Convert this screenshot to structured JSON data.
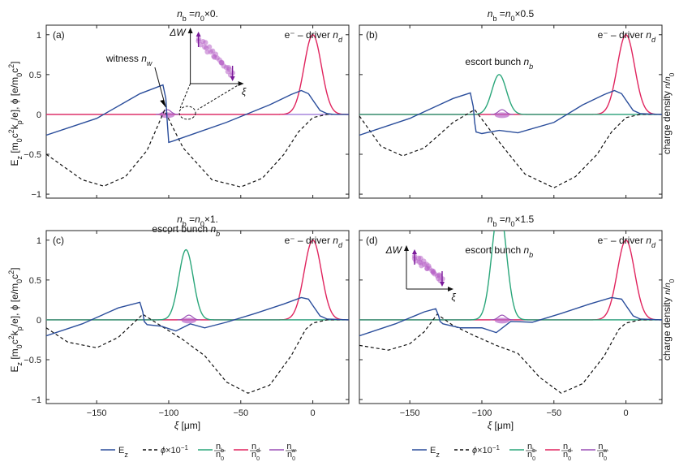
{
  "chart_data": [
    {
      "type": "line",
      "title": "n_b =n_0×0.",
      "panel_label": "(a)",
      "x_ticks": [
        -150,
        -100,
        -50,
        0
      ],
      "y_ticks": [
        -1,
        -0.5,
        0,
        0.5,
        1
      ],
      "y_tick_labels": [
        "−1",
        "−0.5",
        "0",
        "0.5",
        "1"
      ],
      "xlim": [
        -185,
        25
      ],
      "ylim": [
        -1.05,
        1.12
      ],
      "driver_label": "e⁻ – driver n_d",
      "annotation": "witness n_w",
      "escort_label": "",
      "escort_amp": 0,
      "inset": true,
      "inset_ylabel": "ΔW",
      "inset_xlabel": "ξ",
      "series": [
        {
          "name": "E_z",
          "x": [
            -185,
            -150,
            -120,
            -104,
            -102,
            -101,
            -100,
            -98,
            -60,
            -30,
            -15,
            -8,
            -3,
            0,
            5,
            10,
            15,
            25
          ],
          "y": [
            -0.26,
            -0.05,
            0.26,
            0.37,
            0.2,
            -0.1,
            -0.35,
            -0.34,
            -0.1,
            0.12,
            0.25,
            0.3,
            0.26,
            0.18,
            0.05,
            0.01,
            0.0,
            0.0
          ]
        },
        {
          "name": "φ×10⁻¹",
          "x": [
            -185,
            -160,
            -145,
            -130,
            -115,
            -103,
            -90,
            -70,
            -50,
            -35,
            -20,
            -10,
            0,
            10,
            25
          ],
          "y": [
            -0.5,
            -0.82,
            -0.9,
            -0.78,
            -0.45,
            0.05,
            -0.42,
            -0.82,
            -0.91,
            -0.8,
            -0.5,
            -0.22,
            -0.04,
            0.0,
            0.0
          ]
        }
      ]
    },
    {
      "type": "line",
      "title": "n_b =n_0×0.5",
      "panel_label": "(b)",
      "x_ticks": [
        -150,
        -100,
        -50,
        0
      ],
      "y_ticks": [
        -1,
        -0.5,
        0,
        0.5,
        1
      ],
      "y_tick_labels": [
        "",
        "",
        "",
        "",
        ""
      ],
      "xlim": [
        -185,
        25
      ],
      "ylim": [
        -1.05,
        1.12
      ],
      "driver_label": "e⁻ – driver n_d",
      "annotation": "",
      "escort_label": "escort bunch n_b",
      "escort_amp": 0.5,
      "inset": false,
      "series": [
        {
          "name": "E_z",
          "x": [
            -185,
            -150,
            -120,
            -108,
            -106,
            -105,
            -104,
            -100,
            -88,
            -75,
            -50,
            -30,
            -15,
            -8,
            -3,
            0,
            5,
            10,
            25
          ],
          "y": [
            -0.26,
            -0.05,
            0.2,
            0.27,
            0.1,
            -0.1,
            -0.22,
            -0.24,
            -0.2,
            -0.23,
            -0.1,
            0.12,
            0.25,
            0.3,
            0.26,
            0.18,
            0.05,
            0.01,
            0.0
          ]
        },
        {
          "name": "φ×10⁻¹",
          "x": [
            -185,
            -170,
            -155,
            -140,
            -120,
            -105,
            -90,
            -70,
            -50,
            -35,
            -20,
            -10,
            0,
            10,
            25
          ],
          "y": [
            -0.02,
            -0.4,
            -0.52,
            -0.42,
            -0.1,
            0.06,
            -0.3,
            -0.75,
            -0.92,
            -0.78,
            -0.5,
            -0.22,
            -0.04,
            0.0,
            0.0
          ]
        }
      ]
    },
    {
      "type": "line",
      "title": "n_b =n_0×1.",
      "panel_label": "(c)",
      "x_ticks": [
        -150,
        -100,
        -50,
        0
      ],
      "x_tick_labels": [
        "−150",
        "−100",
        "−50",
        "0"
      ],
      "y_ticks": [
        -1,
        -0.5,
        0,
        0.5,
        1
      ],
      "y_tick_labels": [
        "−1",
        "−0.5",
        "0",
        "0.5",
        "1"
      ],
      "xlim": [
        -185,
        25
      ],
      "ylim": [
        -1.05,
        1.12
      ],
      "xlabel": "ξ [μm]",
      "driver_label": "e⁻ – driver n_d",
      "annotation": "",
      "escort_label": "escort bunch n_b",
      "escort_amp": 0.88,
      "inset": false,
      "series": [
        {
          "name": "E_z",
          "x": [
            -185,
            -160,
            -135,
            -120,
            -118,
            -117,
            -115,
            -105,
            -95,
            -85,
            -75,
            -60,
            -40,
            -20,
            -8,
            -3,
            0,
            5,
            10,
            25
          ],
          "y": [
            -0.2,
            -0.05,
            0.15,
            0.22,
            0.1,
            -0.02,
            -0.06,
            -0.08,
            -0.14,
            -0.05,
            -0.1,
            -0.03,
            0.08,
            0.2,
            0.28,
            0.26,
            0.18,
            0.05,
            0.01,
            0.0
          ]
        },
        {
          "name": "φ×10⁻¹",
          "x": [
            -185,
            -170,
            -150,
            -135,
            -118,
            -105,
            -90,
            -75,
            -60,
            -45,
            -30,
            -15,
            -5,
            0,
            10,
            25
          ],
          "y": [
            -0.1,
            -0.28,
            -0.35,
            -0.22,
            0.07,
            -0.08,
            -0.25,
            -0.45,
            -0.78,
            -0.92,
            -0.82,
            -0.45,
            -0.12,
            -0.04,
            0.0,
            0.0
          ]
        }
      ]
    },
    {
      "type": "line",
      "title": "n_b =n_0×1.5",
      "panel_label": "(d)",
      "x_ticks": [
        -150,
        -100,
        -50,
        0
      ],
      "x_tick_labels": [
        "−150",
        "−100",
        "−50",
        "0"
      ],
      "y_ticks": [
        -1,
        -0.5,
        0,
        0.5,
        1
      ],
      "y_tick_labels": [
        "",
        "",
        "",
        "",
        ""
      ],
      "xlim": [
        -185,
        25
      ],
      "ylim": [
        -1.05,
        1.12
      ],
      "xlabel": "ξ [μm]",
      "driver_label": "e⁻ – driver n_d",
      "annotation": "",
      "escort_label": "escort bunch n_b",
      "escort_amp": 1.42,
      "inset": true,
      "inset_ylabel": "ΔW",
      "inset_xlabel": "ξ",
      "series": [
        {
          "name": "E_z",
          "x": [
            -185,
            -160,
            -140,
            -132,
            -130,
            -129,
            -127,
            -115,
            -100,
            -90,
            -80,
            -65,
            -45,
            -25,
            -10,
            -3,
            0,
            5,
            10,
            25
          ],
          "y": [
            -0.2,
            -0.05,
            0.1,
            0.14,
            0.05,
            -0.02,
            -0.05,
            -0.1,
            -0.1,
            -0.16,
            -0.02,
            -0.03,
            0.08,
            0.2,
            0.28,
            0.26,
            0.18,
            0.05,
            0.01,
            0.0
          ]
        },
        {
          "name": "φ×10⁻¹",
          "x": [
            -185,
            -165,
            -150,
            -140,
            -131,
            -120,
            -105,
            -90,
            -75,
            -60,
            -45,
            -30,
            -15,
            -5,
            0,
            10,
            25
          ],
          "y": [
            -0.32,
            -0.38,
            -0.3,
            -0.15,
            0.07,
            -0.07,
            -0.2,
            -0.32,
            -0.42,
            -0.72,
            -0.92,
            -0.8,
            -0.45,
            -0.12,
            -0.04,
            0.0,
            0.0
          ]
        }
      ]
    }
  ],
  "labels": {
    "ylabel": "E_z [m₀c²k_p/e], φ [e/m₀c²]",
    "ylabel_right": "charge density n/n₀",
    "xlabel": "ξ [μm]"
  },
  "legend": [
    "E_z",
    "φ×10⁻¹",
    "n_b/n_0",
    "n_d/n_0",
    "n_w/n_0"
  ],
  "colors": {
    "Ez": "#2a4d9b",
    "phi": "#111111",
    "nb": "#2aa67a",
    "nd": "#e0245e",
    "nw": "#9a4fb5",
    "witness_fill": "#b865c8",
    "zero_line": "#8a5cd0"
  }
}
